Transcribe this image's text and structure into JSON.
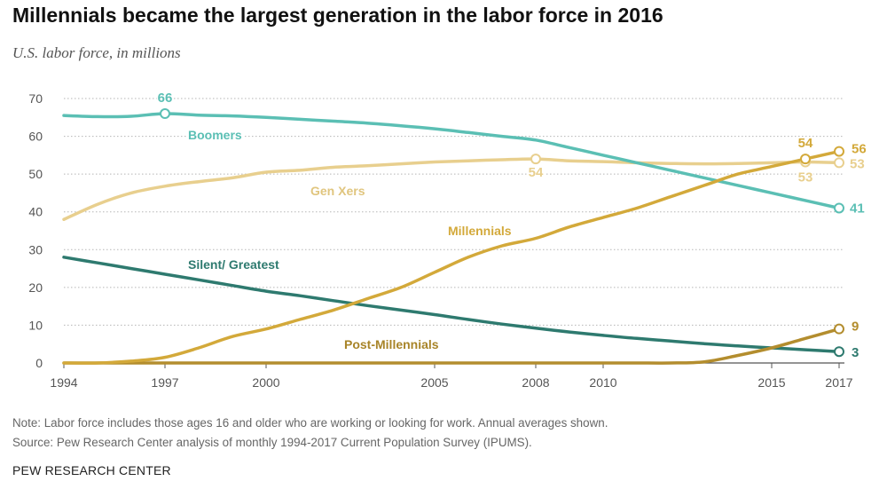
{
  "header": {
    "title": "Millennials became the largest generation in the labor force in 2016",
    "subtitle": "U.S. labor force, in millions"
  },
  "footer": {
    "note": "Note: Labor force includes those ages 16 and older who are working or looking for work. Annual averages shown.",
    "source": "Source: Pew Research Center analysis of monthly 1994-2017 Current Population Survey (IPUMS).",
    "org": "PEW RESEARCH CENTER"
  },
  "chart_data": {
    "type": "line",
    "title": "Millennials became the largest generation in the labor force in 2016",
    "subtitle": "U.S. labor force, in millions",
    "xlim": [
      1994,
      2017
    ],
    "ylim": [
      0,
      70
    ],
    "grid": true,
    "x_ticks": [
      1994,
      1997,
      2000,
      2005,
      2008,
      2010,
      2015,
      2017
    ],
    "y_ticks": [
      0,
      10,
      20,
      30,
      40,
      50,
      60,
      70
    ],
    "series": [
      {
        "name": "Boomers",
        "color": "#5bbfb4",
        "x": [
          1994,
          1995,
          1996,
          1997,
          1998,
          1999,
          2000,
          2001,
          2002,
          2003,
          2004,
          2005,
          2006,
          2007,
          2008,
          2009,
          2010,
          2011,
          2012,
          2013,
          2014,
          2015,
          2016,
          2017
        ],
        "values": [
          65.5,
          65.2,
          65.3,
          66,
          65.6,
          65.4,
          65,
          64.5,
          64,
          63.5,
          62.8,
          62,
          61,
          60,
          59,
          57,
          55,
          53,
          51,
          49,
          47,
          45,
          43,
          41
        ]
      },
      {
        "name": "Gen Xers",
        "color": "#e8cf8e",
        "x": [
          1994,
          1995,
          1996,
          1997,
          1998,
          1999,
          2000,
          2001,
          2002,
          2003,
          2004,
          2005,
          2006,
          2007,
          2008,
          2009,
          2010,
          2011,
          2012,
          2013,
          2014,
          2015,
          2016,
          2017
        ],
        "values": [
          38,
          42,
          45,
          46.8,
          48,
          49,
          50.5,
          51,
          51.8,
          52.2,
          52.7,
          53.2,
          53.5,
          53.8,
          54,
          53.5,
          53.3,
          53,
          52.8,
          52.7,
          52.8,
          53,
          53.2,
          53
        ]
      },
      {
        "name": "Millennials",
        "color": "#d3a93a",
        "x": [
          1994,
          1995,
          1996,
          1997,
          1998,
          1999,
          2000,
          2001,
          2002,
          2003,
          2004,
          2005,
          2006,
          2007,
          2008,
          2009,
          2010,
          2011,
          2012,
          2013,
          2014,
          2015,
          2016,
          2017
        ],
        "values": [
          0,
          0,
          0.5,
          1.5,
          4,
          7,
          9,
          11.5,
          14,
          17,
          20,
          24,
          28,
          31,
          33,
          36,
          38.5,
          41,
          44,
          47,
          50,
          52,
          54,
          56
        ]
      },
      {
        "name": "Silent/ Greatest",
        "color": "#2e7a6f",
        "x": [
          1994,
          1995,
          1996,
          1997,
          1998,
          1999,
          2000,
          2001,
          2002,
          2003,
          2004,
          2005,
          2006,
          2007,
          2008,
          2009,
          2010,
          2011,
          2012,
          2013,
          2014,
          2015,
          2016,
          2017
        ],
        "values": [
          28,
          26.5,
          25,
          23.5,
          22,
          20.5,
          19,
          17.8,
          16.5,
          15.2,
          14,
          12.8,
          11.5,
          10.3,
          9.2,
          8.2,
          7.3,
          6.5,
          5.8,
          5.1,
          4.5,
          4,
          3.5,
          3
        ]
      },
      {
        "name": "Post-Millennials",
        "color": "#b38d2e",
        "x": [
          1994,
          1995,
          1996,
          1997,
          1998,
          1999,
          2000,
          2001,
          2002,
          2003,
          2004,
          2005,
          2006,
          2007,
          2008,
          2009,
          2010,
          2011,
          2012,
          2013,
          2014,
          2015,
          2016,
          2017
        ],
        "values": [
          0,
          0,
          0,
          0,
          0,
          0,
          0,
          0,
          0,
          0,
          0,
          0,
          0,
          0,
          0,
          0,
          0,
          0,
          0,
          0.3,
          2,
          4,
          6.5,
          9
        ]
      }
    ],
    "data_labels": [
      {
        "text": "66",
        "series": "Boomers",
        "x": 1997,
        "y": 66
      },
      {
        "text": "41",
        "series": "Boomers",
        "x": 2017,
        "y": 41
      },
      {
        "text": "54",
        "series": "Gen Xers",
        "x": 2008,
        "y": 54
      },
      {
        "text": "53",
        "series": "Gen Xers",
        "x": 2016,
        "y": 53.2
      },
      {
        "text": "53",
        "series": "Gen Xers",
        "x": 2017,
        "y": 53
      },
      {
        "text": "54",
        "series": "Millennials",
        "x": 2016,
        "y": 54
      },
      {
        "text": "56",
        "series": "Millennials",
        "x": 2017,
        "y": 56
      },
      {
        "text": "9",
        "series": "Post-Millennials",
        "x": 2017,
        "y": 9
      },
      {
        "text": "3",
        "series": "Silent/ Greatest",
        "x": 2017,
        "y": 3
      }
    ]
  }
}
